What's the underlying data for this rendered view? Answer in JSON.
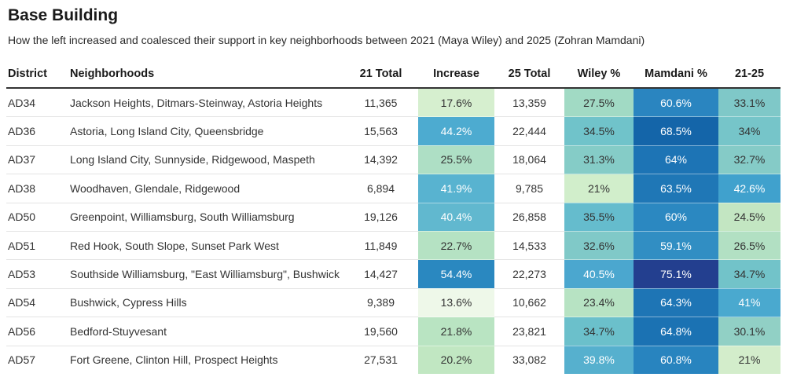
{
  "title": "Base Building",
  "subtitle": "How the left increased and coalesced their support in key neighborhoods between 2021 (Maya Wiley) and 2025 (Zohran Mamdani)",
  "columns": [
    "District",
    "Neighborhoods",
    "21 Total",
    "Increase",
    "25 Total",
    "Wiley %",
    "Mamdani %",
    "21-25"
  ],
  "rows": [
    {
      "district": "AD34",
      "neighborhoods": "Jackson Heights, Ditmars-Steinway, Astoria Heights",
      "total21": "11,365",
      "increase": "17.6%",
      "total25": "13,359",
      "wiley": "27.5%",
      "mamdani": "60.6%",
      "d2125": "33.1%"
    },
    {
      "district": "AD36",
      "neighborhoods": "Astoria, Long Island City, Queensbridge",
      "total21": "15,563",
      "increase": "44.2%",
      "total25": "22,444",
      "wiley": "34.5%",
      "mamdani": "68.5%",
      "d2125": "34%"
    },
    {
      "district": "AD37",
      "neighborhoods": "Long Island City, Sunnyside, Ridgewood, Maspeth",
      "total21": "14,392",
      "increase": "25.5%",
      "total25": "18,064",
      "wiley": "31.3%",
      "mamdani": "64%",
      "d2125": "32.7%"
    },
    {
      "district": "AD38",
      "neighborhoods": "Woodhaven, Glendale, Ridgewood",
      "total21": "6,894",
      "increase": "41.9%",
      "total25": "9,785",
      "wiley": "21%",
      "mamdani": "63.5%",
      "d2125": "42.6%"
    },
    {
      "district": "AD50",
      "neighborhoods": "Greenpoint, Williamsburg, South Williamsburg",
      "total21": "19,126",
      "increase": "40.4%",
      "total25": "26,858",
      "wiley": "35.5%",
      "mamdani": "60%",
      "d2125": "24.5%"
    },
    {
      "district": "AD51",
      "neighborhoods": "Red Hook, South Slope, Sunset Park West",
      "total21": "11,849",
      "increase": "22.7%",
      "total25": "14,533",
      "wiley": "32.6%",
      "mamdani": "59.1%",
      "d2125": "26.5%"
    },
    {
      "district": "AD53",
      "neighborhoods": "Southside Williamsburg, \"East Williamsburg\", Bushwick",
      "total21": "14,427",
      "increase": "54.4%",
      "total25": "22,273",
      "wiley": "40.5%",
      "mamdani": "75.1%",
      "d2125": "34.7%"
    },
    {
      "district": "AD54",
      "neighborhoods": "Bushwick, Cypress Hills",
      "total21": "9,389",
      "increase": "13.6%",
      "total25": "10,662",
      "wiley": "23.4%",
      "mamdani": "64.3%",
      "d2125": "41%"
    },
    {
      "district": "AD56",
      "neighborhoods": "Bedford-Stuyvesant",
      "total21": "19,560",
      "increase": "21.8%",
      "total25": "23,821",
      "wiley": "34.7%",
      "mamdani": "64.8%",
      "d2125": "30.1%"
    },
    {
      "district": "AD57",
      "neighborhoods": "Fort Greene, Clinton Hill, Prospect Heights",
      "total21": "27,531",
      "increase": "20.2%",
      "total25": "33,082",
      "wiley": "39.8%",
      "mamdani": "60.8%",
      "d2125": "21%"
    }
  ],
  "heat_colors": {
    "increase": [
      "#d6efcf",
      "#4dabd0",
      "#aedfc5",
      "#58b3d0",
      "#61b8cf",
      "#b5e2c3",
      "#2a88c0",
      "#eef8e9",
      "#b9e4c2",
      "#c1e7c2"
    ],
    "wiley": [
      "#a1dac4",
      "#70c3ca",
      "#85ccc7",
      "#d1eecb",
      "#65bccd",
      "#80c9c8",
      "#4ba7cf",
      "#b7e3c3",
      "#6bc0cb",
      "#56b0ce"
    ],
    "mamdani": [
      "#2a85c0",
      "#1465a9",
      "#1d74b5",
      "#1f77b6",
      "#2b88c1",
      "#318ec3",
      "#233f8f",
      "#1e75b5",
      "#1b72b3",
      "#2884bf"
    ],
    "d2125": [
      "#7fc8c8",
      "#76c5c9",
      "#85cbc7",
      "#40a1cd",
      "#c3e6c2",
      "#b2e0c3",
      "#72c3c9",
      "#4aa9cf",
      "#91d0c5",
      "#d3edcb"
    ]
  },
  "text_colors": {
    "increase": [
      "#333333",
      "#ffffff",
      "#333333",
      "#ffffff",
      "#ffffff",
      "#333333",
      "#ffffff",
      "#333333",
      "#333333",
      "#333333"
    ],
    "wiley": [
      "#333333",
      "#333333",
      "#333333",
      "#333333",
      "#333333",
      "#333333",
      "#ffffff",
      "#333333",
      "#333333",
      "#ffffff"
    ],
    "mamdani": [
      "#ffffff",
      "#ffffff",
      "#ffffff",
      "#ffffff",
      "#ffffff",
      "#ffffff",
      "#ffffff",
      "#ffffff",
      "#ffffff",
      "#ffffff"
    ],
    "d2125": [
      "#333333",
      "#333333",
      "#333333",
      "#ffffff",
      "#333333",
      "#333333",
      "#333333",
      "#ffffff",
      "#333333",
      "#333333"
    ]
  }
}
